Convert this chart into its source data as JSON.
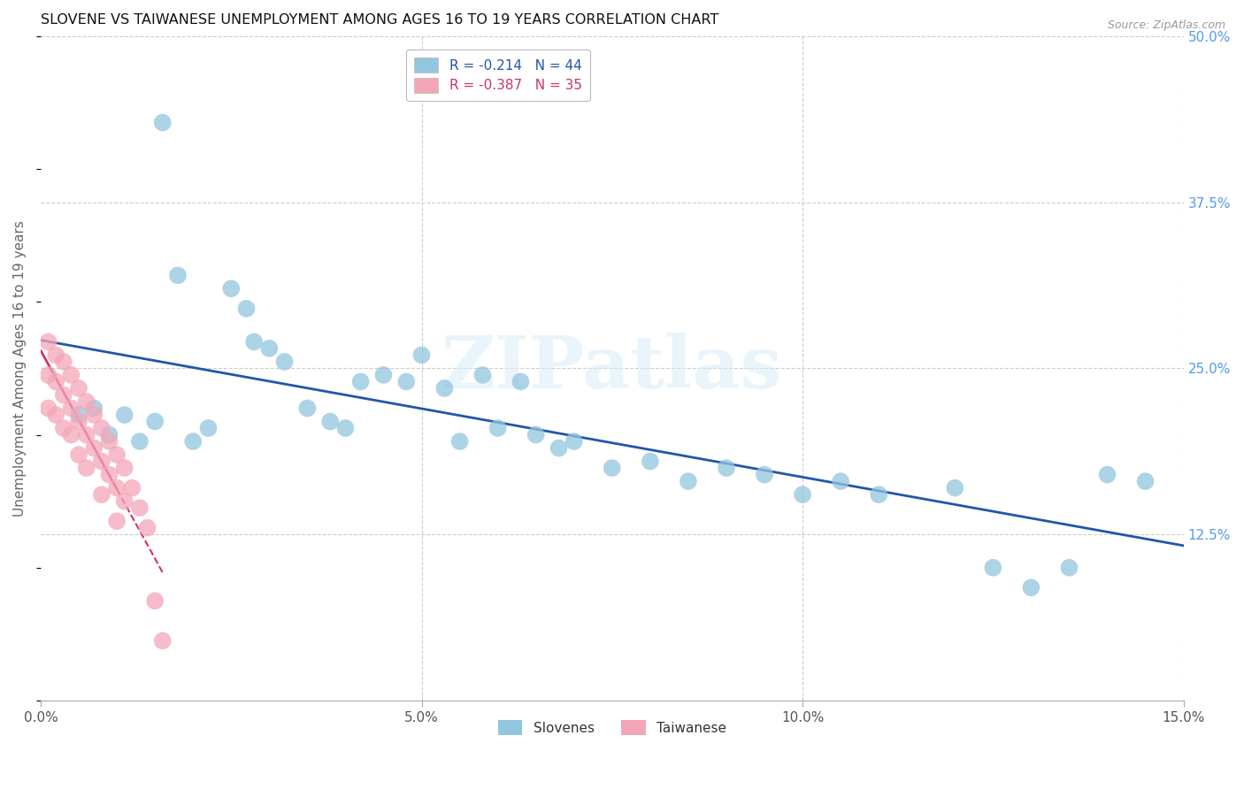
{
  "title": "SLOVENE VS TAIWANESE UNEMPLOYMENT AMONG AGES 16 TO 19 YEARS CORRELATION CHART",
  "source": "Source: ZipAtlas.com",
  "ylabel": "Unemployment Among Ages 16 to 19 years",
  "xlim": [
    0.0,
    0.15
  ],
  "ylim": [
    0.0,
    0.5
  ],
  "xticks": [
    0.0,
    0.05,
    0.1,
    0.15
  ],
  "xticklabels": [
    "0.0%",
    "5.0%",
    "10.0%",
    "15.0%"
  ],
  "yticks": [
    0.0,
    0.125,
    0.25,
    0.375,
    0.5
  ],
  "yticklabels_right": [
    "",
    "12.5%",
    "25.0%",
    "37.5%",
    "50.0%"
  ],
  "legend_labels": [
    "R = -0.214   N = 44",
    "R = -0.387   N = 35"
  ],
  "slovene_color": "#92c5de",
  "taiwanese_color": "#f4a6b8",
  "slovene_line_color": "#2255aa",
  "taiwanese_line_color": "#cc3366",
  "watermark": "ZIPatlas",
  "slovene_x": [
    0.005,
    0.007,
    0.009,
    0.011,
    0.013,
    0.015,
    0.016,
    0.018,
    0.02,
    0.022,
    0.025,
    0.027,
    0.028,
    0.03,
    0.032,
    0.035,
    0.038,
    0.04,
    0.042,
    0.045,
    0.048,
    0.05,
    0.053,
    0.055,
    0.058,
    0.06,
    0.063,
    0.065,
    0.068,
    0.07,
    0.075,
    0.08,
    0.085,
    0.09,
    0.095,
    0.1,
    0.105,
    0.11,
    0.12,
    0.125,
    0.13,
    0.135,
    0.14,
    0.145
  ],
  "slovene_y": [
    0.215,
    0.22,
    0.2,
    0.215,
    0.195,
    0.21,
    0.435,
    0.32,
    0.195,
    0.205,
    0.31,
    0.295,
    0.27,
    0.265,
    0.255,
    0.22,
    0.21,
    0.205,
    0.24,
    0.245,
    0.24,
    0.26,
    0.235,
    0.195,
    0.245,
    0.205,
    0.24,
    0.2,
    0.19,
    0.195,
    0.175,
    0.18,
    0.165,
    0.175,
    0.17,
    0.155,
    0.165,
    0.155,
    0.16,
    0.1,
    0.085,
    0.1,
    0.17,
    0.165
  ],
  "taiwanese_x": [
    0.001,
    0.001,
    0.001,
    0.002,
    0.002,
    0.002,
    0.003,
    0.003,
    0.003,
    0.004,
    0.004,
    0.004,
    0.005,
    0.005,
    0.005,
    0.006,
    0.006,
    0.006,
    0.007,
    0.007,
    0.008,
    0.008,
    0.008,
    0.009,
    0.009,
    0.01,
    0.01,
    0.01,
    0.011,
    0.011,
    0.012,
    0.013,
    0.014,
    0.015,
    0.016
  ],
  "taiwanese_y": [
    0.27,
    0.245,
    0.22,
    0.26,
    0.24,
    0.215,
    0.255,
    0.23,
    0.205,
    0.245,
    0.22,
    0.2,
    0.235,
    0.21,
    0.185,
    0.225,
    0.2,
    0.175,
    0.215,
    0.19,
    0.205,
    0.18,
    0.155,
    0.195,
    0.17,
    0.185,
    0.16,
    0.135,
    0.175,
    0.15,
    0.16,
    0.145,
    0.13,
    0.075,
    0.045
  ]
}
